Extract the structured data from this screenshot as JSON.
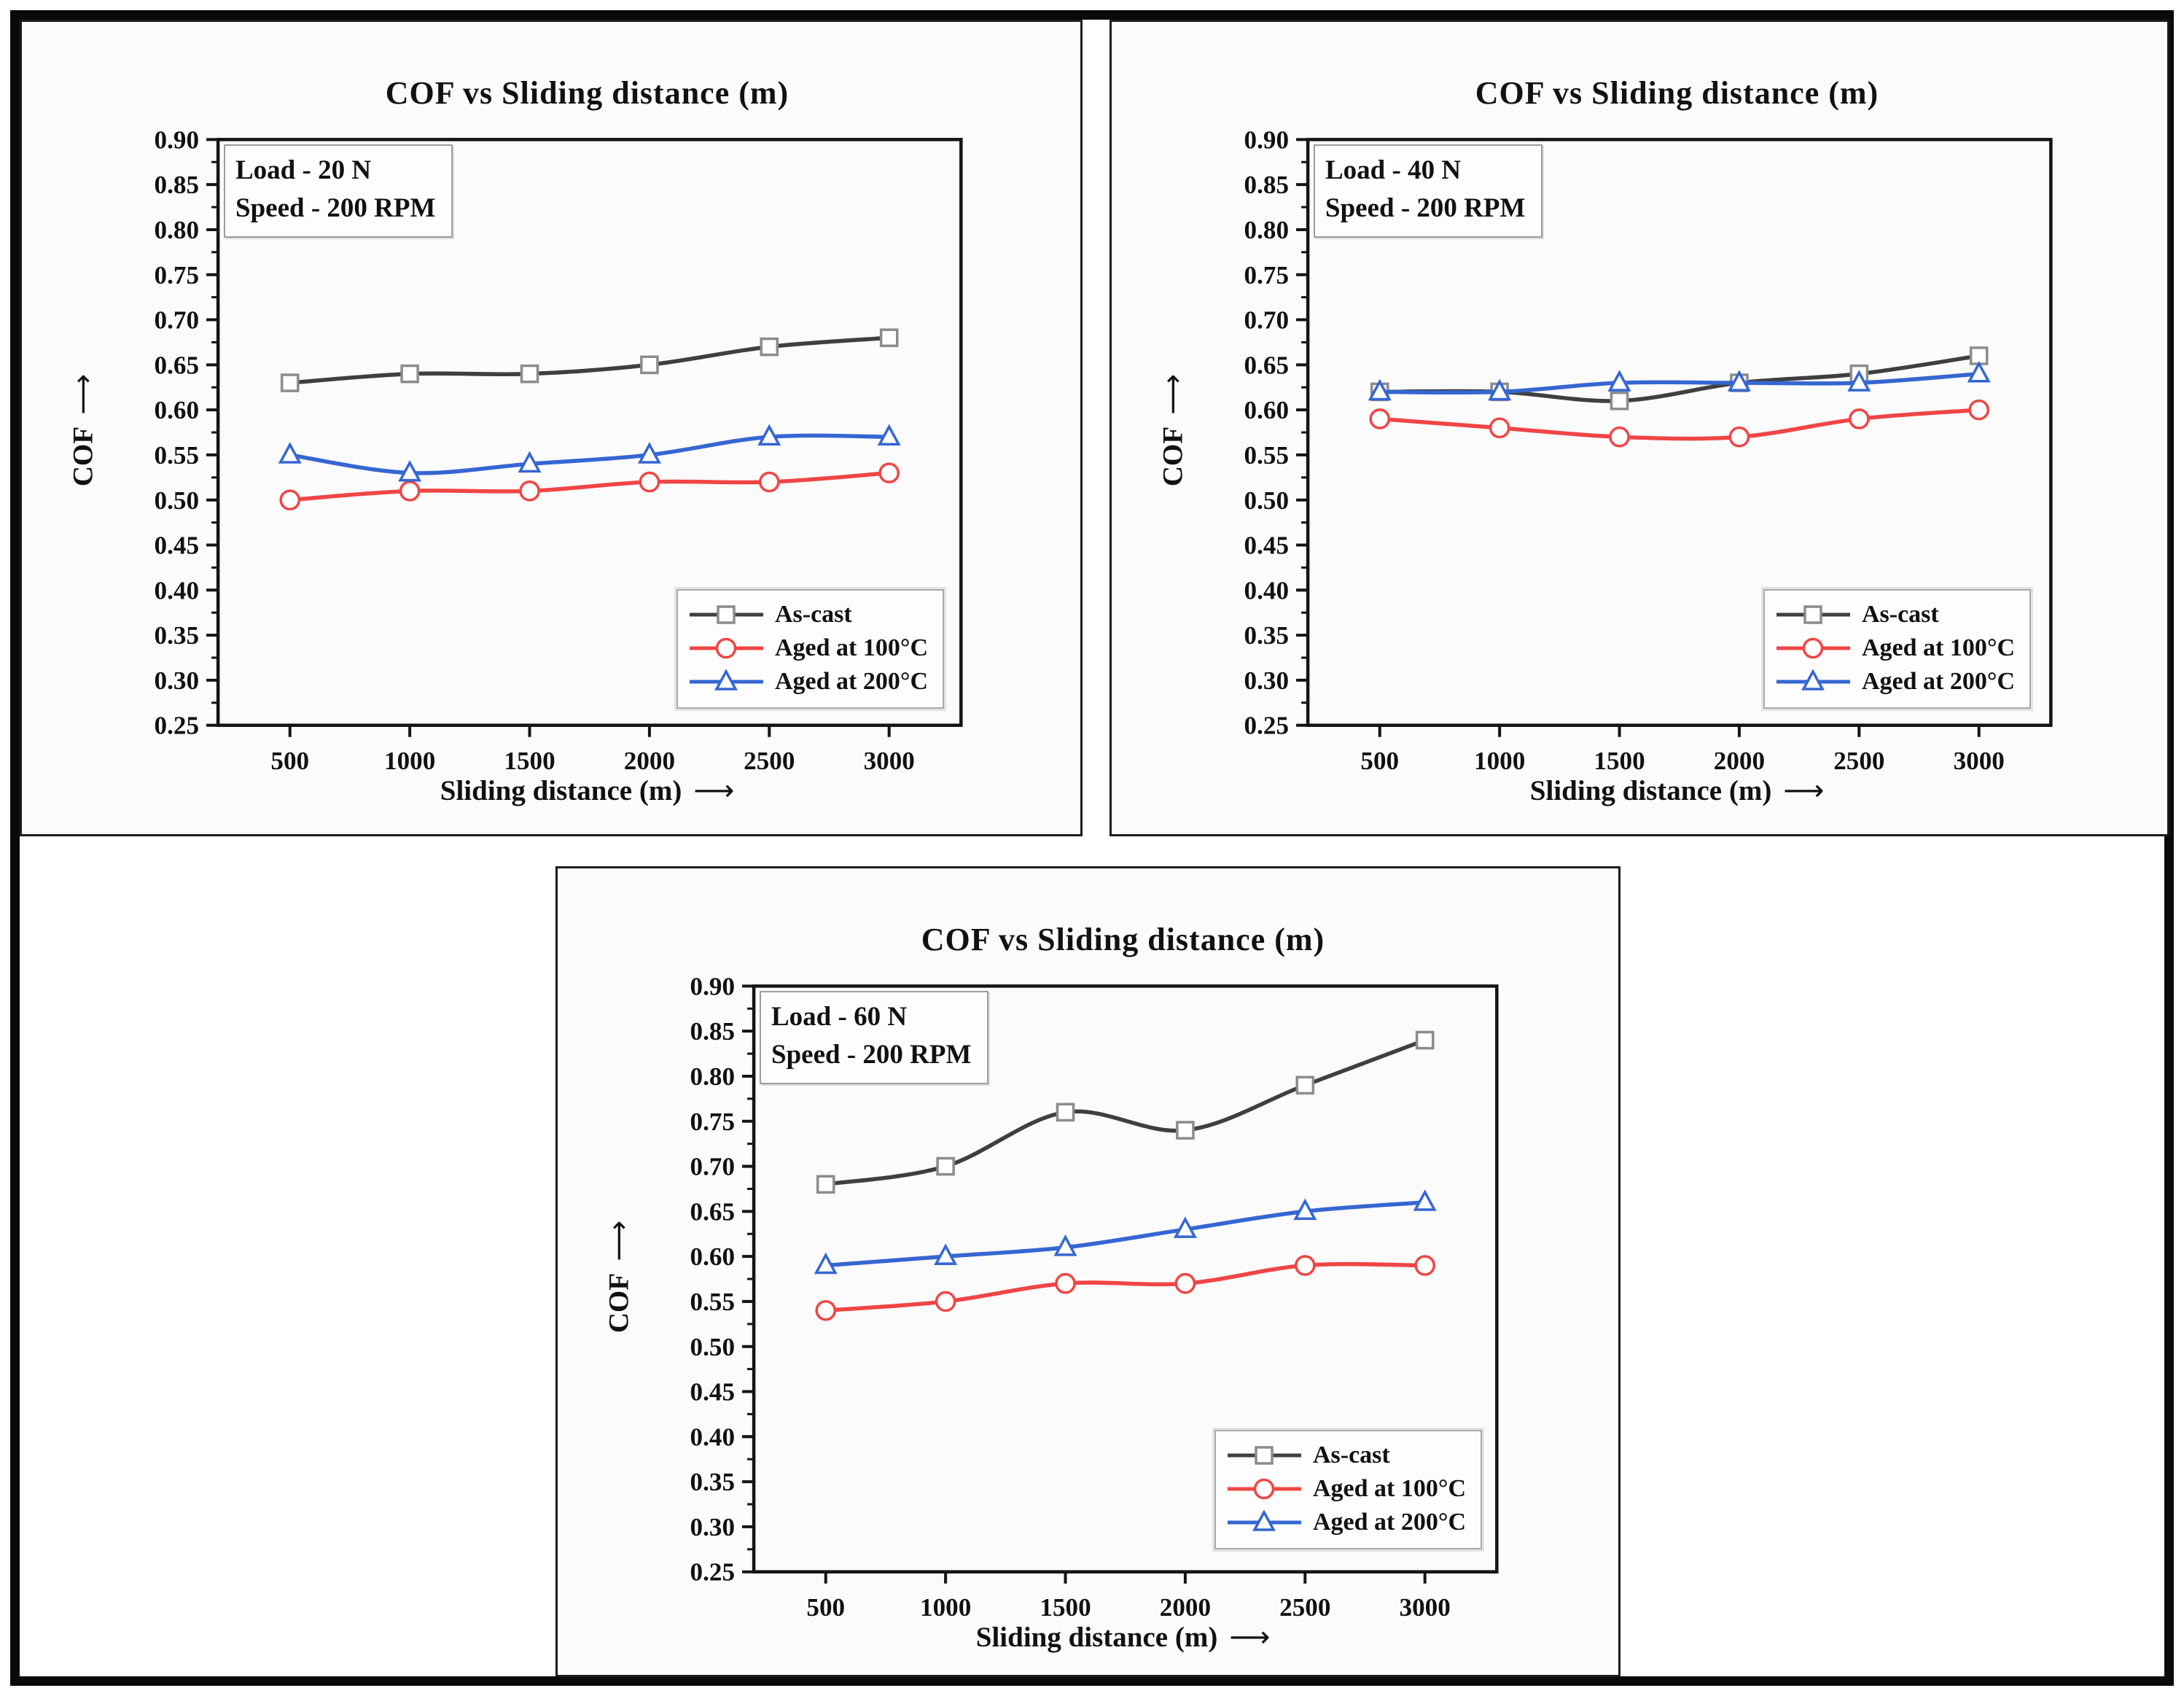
{
  "chart_data": [
    {
      "type": "line",
      "title": "COF vs Sliding distance (m)",
      "annotation": [
        "Load - 20 N",
        "Speed - 200 RPM"
      ],
      "xlabel": "Sliding distance (m)",
      "ylabel": "COF",
      "x": [
        500,
        1000,
        1500,
        2000,
        2500,
        3000
      ],
      "xticks": [
        500,
        1000,
        1500,
        2000,
        2500,
        3000
      ],
      "xlim": [
        200,
        3300
      ],
      "ylim": [
        0.25,
        0.9
      ],
      "ytick_step": 0.05,
      "grid": false,
      "legend_position": "bottom-right",
      "series": [
        {
          "name": "As-cast",
          "color": "#3f3f3f",
          "marker": "square",
          "marker_color": "#8c8c8c",
          "values": [
            0.63,
            0.64,
            0.64,
            0.65,
            0.67,
            0.68
          ]
        },
        {
          "name": "Aged at 100°C",
          "color": "#f04545",
          "marker": "circle",
          "marker_color": "#f04545",
          "values": [
            0.5,
            0.51,
            0.51,
            0.52,
            0.52,
            0.53
          ]
        },
        {
          "name": "Aged at 200°C",
          "color": "#3566d2",
          "marker": "triangle",
          "marker_color": "#3566d2",
          "values": [
            0.55,
            0.53,
            0.54,
            0.55,
            0.57,
            0.57
          ]
        }
      ]
    },
    {
      "type": "line",
      "title": "COF vs Sliding distance (m)",
      "annotation": [
        "Load - 40 N",
        "Speed - 200 RPM"
      ],
      "xlabel": "Sliding distance (m)",
      "ylabel": "COF",
      "x": [
        500,
        1000,
        1500,
        2000,
        2500,
        3000
      ],
      "xticks": [
        500,
        1000,
        1500,
        2000,
        2500,
        3000
      ],
      "xlim": [
        200,
        3300
      ],
      "ylim": [
        0.25,
        0.9
      ],
      "ytick_step": 0.05,
      "grid": false,
      "legend_position": "bottom-right",
      "series": [
        {
          "name": "As-cast",
          "color": "#3f3f3f",
          "marker": "square",
          "marker_color": "#8c8c8c",
          "values": [
            0.62,
            0.62,
            0.61,
            0.63,
            0.64,
            0.66
          ]
        },
        {
          "name": "Aged at 100°C",
          "color": "#f04545",
          "marker": "circle",
          "marker_color": "#f04545",
          "values": [
            0.59,
            0.58,
            0.57,
            0.57,
            0.59,
            0.6
          ]
        },
        {
          "name": "Aged at 200°C",
          "color": "#3566d2",
          "marker": "triangle",
          "marker_color": "#3566d2",
          "values": [
            0.62,
            0.62,
            0.63,
            0.63,
            0.63,
            0.64
          ]
        }
      ]
    },
    {
      "type": "line",
      "title": "COF vs Sliding distance (m)",
      "annotation": [
        "Load - 60 N",
        "Speed - 200 RPM"
      ],
      "xlabel": "Sliding distance (m)",
      "ylabel": "COF",
      "x": [
        500,
        1000,
        1500,
        2000,
        2500,
        3000
      ],
      "xticks": [
        500,
        1000,
        1500,
        2000,
        2500,
        3000
      ],
      "xlim": [
        200,
        3300
      ],
      "ylim": [
        0.25,
        0.9
      ],
      "ytick_step": 0.05,
      "grid": false,
      "legend_position": "bottom-right",
      "series": [
        {
          "name": "As-cast",
          "color": "#3f3f3f",
          "marker": "square",
          "marker_color": "#8c8c8c",
          "values": [
            0.68,
            0.7,
            0.76,
            0.74,
            0.79,
            0.84
          ]
        },
        {
          "name": "Aged at 100°C",
          "color": "#f04545",
          "marker": "circle",
          "marker_color": "#f04545",
          "values": [
            0.54,
            0.55,
            0.57,
            0.57,
            0.59,
            0.59
          ]
        },
        {
          "name": "Aged at 200°C",
          "color": "#3566d2",
          "marker": "triangle",
          "marker_color": "#3566d2",
          "values": [
            0.59,
            0.6,
            0.61,
            0.63,
            0.65,
            0.66
          ]
        }
      ]
    }
  ],
  "style": {
    "axis_color": "#141414",
    "text_color": "#111111",
    "panel_bg": "#fbfbfb"
  }
}
